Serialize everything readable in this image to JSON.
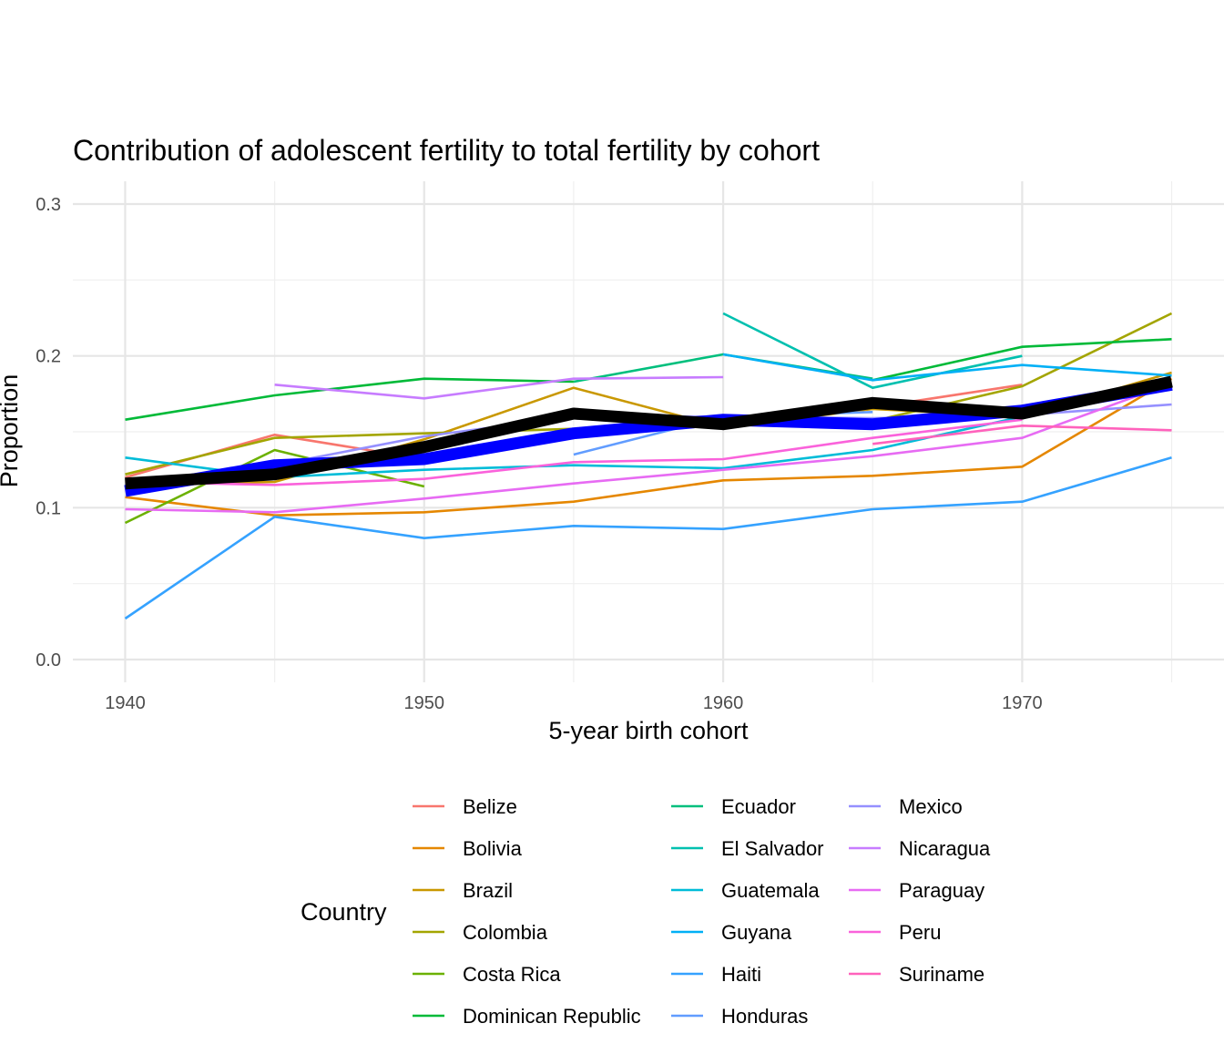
{
  "chart_data": {
    "type": "line",
    "title": "Contribution of adolescent fertility to total fertility by cohort",
    "xlabel": "5-year birth cohort",
    "ylabel": "Proportion",
    "x_ticks": [
      "1940",
      "1950",
      "1960",
      "1970"
    ],
    "y_ticks": [
      "0.0",
      "0.1",
      "0.2",
      "0.3"
    ],
    "xlim": [
      1938.25,
      1976.75
    ],
    "ylim": [
      -0.015,
      0.315
    ],
    "grid": true,
    "legend_title": "Country",
    "legend_position": "bottom",
    "x": [
      1940,
      1945,
      1950,
      1955,
      1960,
      1965,
      1970,
      1975
    ],
    "series": [
      {
        "name": "Belize",
        "color": "#F8766D",
        "values": [
          0.12,
          0.148,
          0.132,
          null,
          0.156,
          0.166,
          0.181,
          null
        ]
      },
      {
        "name": "Bolivia",
        "color": "#E58700",
        "values": [
          0.107,
          0.095,
          0.097,
          0.104,
          0.118,
          0.121,
          0.127,
          0.185
        ]
      },
      {
        "name": "Brazil",
        "color": "#C99800",
        "values": [
          0.115,
          0.117,
          0.145,
          0.179,
          0.153,
          0.165,
          0.16,
          0.189
        ]
      },
      {
        "name": "Colombia",
        "color": "#A3A500",
        "values": [
          0.122,
          0.146,
          0.149,
          0.152,
          0.159,
          0.157,
          0.18,
          0.228
        ]
      },
      {
        "name": "Costa Rica",
        "color": "#6BB100",
        "values": [
          0.09,
          0.138,
          0.114,
          null,
          null,
          null,
          null,
          null
        ]
      },
      {
        "name": "Dominican Republic",
        "color": "#00BA38",
        "values": [
          0.158,
          0.174,
          0.185,
          0.183,
          null,
          0.184,
          0.206,
          0.211
        ]
      },
      {
        "name": "Ecuador",
        "color": "#00BF7D",
        "values": [
          null,
          null,
          null,
          0.183,
          0.201,
          0.185,
          null,
          null
        ]
      },
      {
        "name": "El Salvador",
        "color": "#00C0AF",
        "values": [
          null,
          null,
          null,
          null,
          0.228,
          0.179,
          0.2,
          null
        ]
      },
      {
        "name": "Guatemala",
        "color": "#00BCD8",
        "values": [
          0.133,
          0.12,
          0.125,
          0.128,
          0.126,
          0.138,
          0.16,
          null
        ]
      },
      {
        "name": "Guyana",
        "color": "#00B0F6",
        "values": [
          null,
          null,
          null,
          null,
          0.201,
          0.184,
          0.194,
          0.187
        ]
      },
      {
        "name": "Haiti",
        "color": "#35A2FF",
        "values": [
          0.027,
          0.094,
          0.08,
          0.088,
          0.086,
          0.099,
          0.104,
          0.133
        ]
      },
      {
        "name": "Honduras",
        "color": "#619CFF",
        "values": [
          null,
          null,
          null,
          0.135,
          0.16,
          0.163,
          null,
          null
        ]
      },
      {
        "name": "Mexico",
        "color": "#9590FF",
        "values": [
          0.115,
          0.128,
          0.147,
          0.16,
          0.16,
          0.159,
          0.161,
          0.168
        ]
      },
      {
        "name": "Nicaragua",
        "color": "#C77CFF",
        "values": [
          null,
          0.181,
          0.172,
          0.185,
          0.186,
          null,
          null,
          null
        ]
      },
      {
        "name": "Paraguay",
        "color": "#E76BF3",
        "values": [
          0.099,
          0.097,
          0.106,
          0.116,
          0.125,
          0.134,
          0.146,
          0.182
        ]
      },
      {
        "name": "Peru",
        "color": "#FA62DB",
        "values": [
          0.117,
          0.115,
          0.119,
          0.13,
          0.132,
          0.146,
          0.158,
          null
        ]
      },
      {
        "name": "Suriname",
        "color": "#FF62BC",
        "values": [
          null,
          null,
          null,
          null,
          null,
          0.142,
          0.154,
          0.151
        ]
      },
      {
        "name": "Regional average (blue)",
        "color": "#0000FF",
        "values": [
          0.111,
          0.128,
          0.132,
          0.149,
          0.158,
          0.155,
          0.164,
          0.181
        ],
        "in_legend": false
      },
      {
        "name": "Regional average (black)",
        "color": "#000000",
        "values": [
          0.116,
          0.122,
          0.14,
          0.162,
          0.155,
          0.169,
          0.162,
          0.183
        ],
        "in_legend": false
      }
    ],
    "legend_columns": [
      [
        "Belize",
        "Bolivia",
        "Brazil",
        "Colombia",
        "Costa Rica",
        "Dominican Republic"
      ],
      [
        "Ecuador",
        "El Salvador",
        "Guatemala",
        "Guyana",
        "Haiti",
        "Honduras"
      ],
      [
        "Mexico",
        "Nicaragua",
        "Paraguay",
        "Peru",
        "Suriname"
      ]
    ]
  }
}
